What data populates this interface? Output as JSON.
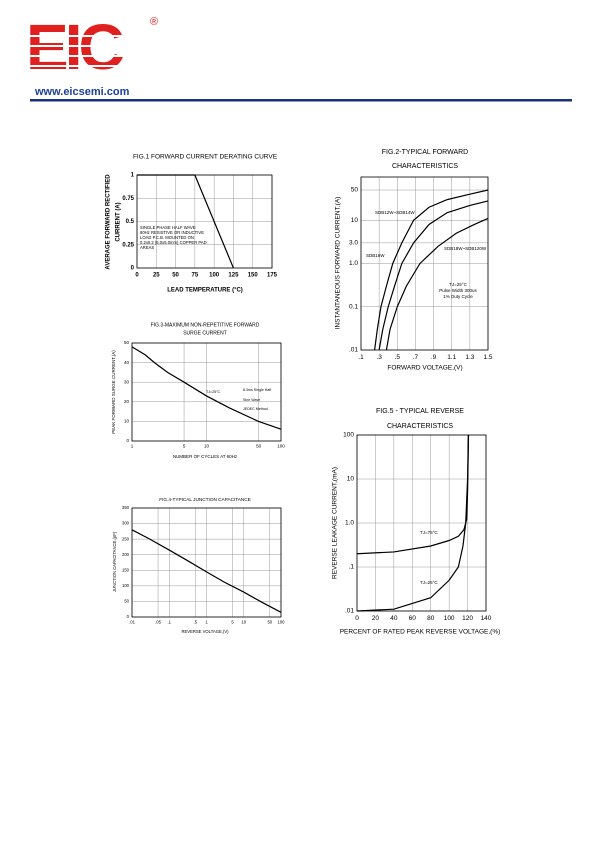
{
  "header": {
    "logo": "EIC",
    "registered": "®",
    "website": "www.eicsemi.com"
  },
  "chart_data": [
    {
      "type": "line",
      "title": [
        "FIG.1 FORWARD CURRENT DERATING CURVE"
      ],
      "x_label": "LEAD TEMPERATURE (°C)",
      "y_label": [
        "AVERAGE FORWARD RECTIFIED",
        "CURRENT (A)"
      ],
      "xscale": "linear",
      "yscale": "linear",
      "xlim": [
        0,
        175
      ],
      "ylim": [
        0,
        1
      ],
      "xticks": [
        0,
        25,
        50,
        75,
        100,
        125,
        150,
        175
      ],
      "yticks": [
        0,
        0.25,
        0.5,
        0.75,
        1
      ],
      "grid": true,
      "series": [
        {
          "color": "#000000",
          "x": [
            0,
            75,
            125
          ],
          "values": [
            1,
            1,
            0
          ]
        }
      ],
      "annotations": [
        "SINGLE PHASE HALF WAVE",
        "60Hz RESISTIVE OR INDUCTIVE",
        "LOAD P.C.B. MOUNTED ON",
        "0.2x0.2 (5.0x5.0mm) COPPER PAD",
        "AREAS"
      ]
    },
    {
      "type": "line",
      "title": [
        "FIG.2-TYPICAL FORWARD",
        "CHARACTERISTICS"
      ],
      "x_label": "FORWARD VOLTAGE,(V)",
      "y_label": [
        "INSTANTANEOUS FORWARD CURRENT,(A)"
      ],
      "xscale": "linear",
      "yscale": "log",
      "xlim": [
        0.1,
        1.5
      ],
      "ylim": [
        0.01,
        100
      ],
      "xticks": [
        {
          "value": 0.1,
          "label": ".1"
        },
        {
          "value": 0.3,
          "label": ".3"
        },
        {
          "value": 0.5,
          "label": ".5"
        },
        {
          "value": 0.7,
          "label": ".7"
        },
        {
          "value": 0.9,
          "label": ".9"
        },
        1.1,
        1.3,
        1.5
      ],
      "yticks": [
        {
          "value": 0.01,
          "label": ".01"
        },
        0.1,
        {
          "value": 1,
          "label": "1.0"
        },
        {
          "value": 3,
          "label": "3.0"
        },
        10,
        50
      ],
      "grid": true,
      "series": [
        {
          "name": "SDB12W~SDB14W",
          "color": "#000000",
          "x": [
            0.25,
            0.28,
            0.32,
            0.38,
            0.45,
            0.55,
            0.68,
            0.85,
            1.05,
            1.3,
            1.5
          ],
          "values": [
            0.01,
            0.03,
            0.1,
            0.3,
            1,
            3,
            10,
            20,
            30,
            40,
            50
          ]
        },
        {
          "name": "SDB16W",
          "color": "#000000",
          "x": [
            0.3,
            0.34,
            0.4,
            0.47,
            0.55,
            0.68,
            0.85,
            1.05,
            1.3,
            1.5
          ],
          "values": [
            0.01,
            0.03,
            0.1,
            0.3,
            1,
            3,
            8,
            15,
            22,
            28
          ]
        },
        {
          "name": "SDB18W~SDB120W",
          "color": "#000000",
          "x": [
            0.38,
            0.42,
            0.5,
            0.6,
            0.75,
            0.95,
            1.15,
            1.35,
            1.5
          ],
          "values": [
            0.01,
            0.03,
            0.1,
            0.3,
            1,
            2.5,
            5,
            8,
            11
          ]
        }
      ],
      "annotations": [
        "TJ=25°C",
        "Pulse Width 300us",
        "1% Duty Cycle"
      ]
    },
    {
      "type": "line",
      "title": [
        "FIG.3-MAXIMUM NON-REPETITIVE FORWARD",
        "SURGE CURRENT"
      ],
      "x_label": "NUMBER OF CYCLES AT 60Hz",
      "y_label": [
        "PEAK FORWARD SURGE CURRENT,(A)"
      ],
      "xscale": "log",
      "yscale": "linear",
      "xlim": [
        1,
        100
      ],
      "ylim": [
        0,
        50
      ],
      "xticks": [
        1,
        5,
        10,
        50,
        100
      ],
      "yticks": [
        0,
        10,
        20,
        30,
        40,
        50
      ],
      "grid": true,
      "series": [
        {
          "color": "#000000",
          "x": [
            1,
            1.5,
            2,
            3,
            5,
            10,
            20,
            50,
            100
          ],
          "values": [
            48,
            44,
            40,
            35,
            30,
            23,
            17,
            10,
            6
          ]
        }
      ],
      "annotations": [
        "TJ=25°C",
        "8.3ms Single Half",
        "Sine Wave",
        "JEDEC Method"
      ]
    },
    {
      "type": "line",
      "title": [
        "FIG.4-TYPICAL JUNCTION CAPACITANCE"
      ],
      "x_label": "REVERSE VOLTAGE,(V)",
      "y_label": [
        "JUNCTION CAPACITANCE,(pF)"
      ],
      "xscale": "log",
      "yscale": "linear",
      "xlim": [
        0.01,
        100
      ],
      "ylim": [
        0,
        350
      ],
      "xticks": [
        {
          "value": 0.01,
          "label": ".01"
        },
        {
          "value": 0.05,
          "label": ".05"
        },
        {
          "value": 0.1,
          "label": ".1"
        },
        {
          "value": 0.5,
          "label": ".5"
        },
        1,
        5,
        10,
        50,
        100
      ],
      "yticks": [
        0,
        50,
        100,
        150,
        200,
        250,
        300,
        350
      ],
      "grid": true,
      "series": [
        {
          "color": "#000000",
          "x": [
            0.01,
            0.03,
            0.1,
            0.3,
            1,
            3,
            10,
            30,
            100
          ],
          "values": [
            280,
            250,
            215,
            182,
            145,
            112,
            80,
            48,
            15
          ]
        }
      ],
      "annotations": []
    },
    {
      "type": "line",
      "title": [
        "FIG.5 - TYPICAL REVERSE",
        "CHARACTERISTICS"
      ],
      "x_label": "PERCENT OF RATED PEAK REVERSE VOLTAGE,(%)",
      "y_label": [
        "REVERSE LEAKAGE CURRENT,(mA)"
      ],
      "xscale": "linear",
      "yscale": "log",
      "xlim": [
        0,
        140
      ],
      "ylim": [
        0.01,
        100
      ],
      "xticks": [
        0,
        20,
        40,
        60,
        80,
        100,
        120,
        140
      ],
      "yticks": [
        {
          "value": 0.01,
          "label": ".01"
        },
        {
          "value": 0.1,
          "label": ".1"
        },
        {
          "value": 1,
          "label": "1.0"
        },
        10,
        100
      ],
      "grid": true,
      "series": [
        {
          "name": "TJ=75°C",
          "color": "#000000",
          "x": [
            0,
            40,
            80,
            100,
            110,
            116,
            119,
            120,
            121
          ],
          "values": [
            0.2,
            0.22,
            0.3,
            0.4,
            0.5,
            0.7,
            1.2,
            5,
            100
          ]
        },
        {
          "name": "TJ=25°C",
          "color": "#000000",
          "x": [
            0,
            40,
            80,
            100,
            110,
            115,
            118,
            120,
            121
          ],
          "values": [
            0.01,
            0.011,
            0.02,
            0.05,
            0.1,
            0.3,
            1,
            10,
            100
          ]
        }
      ],
      "annotations": []
    }
  ]
}
